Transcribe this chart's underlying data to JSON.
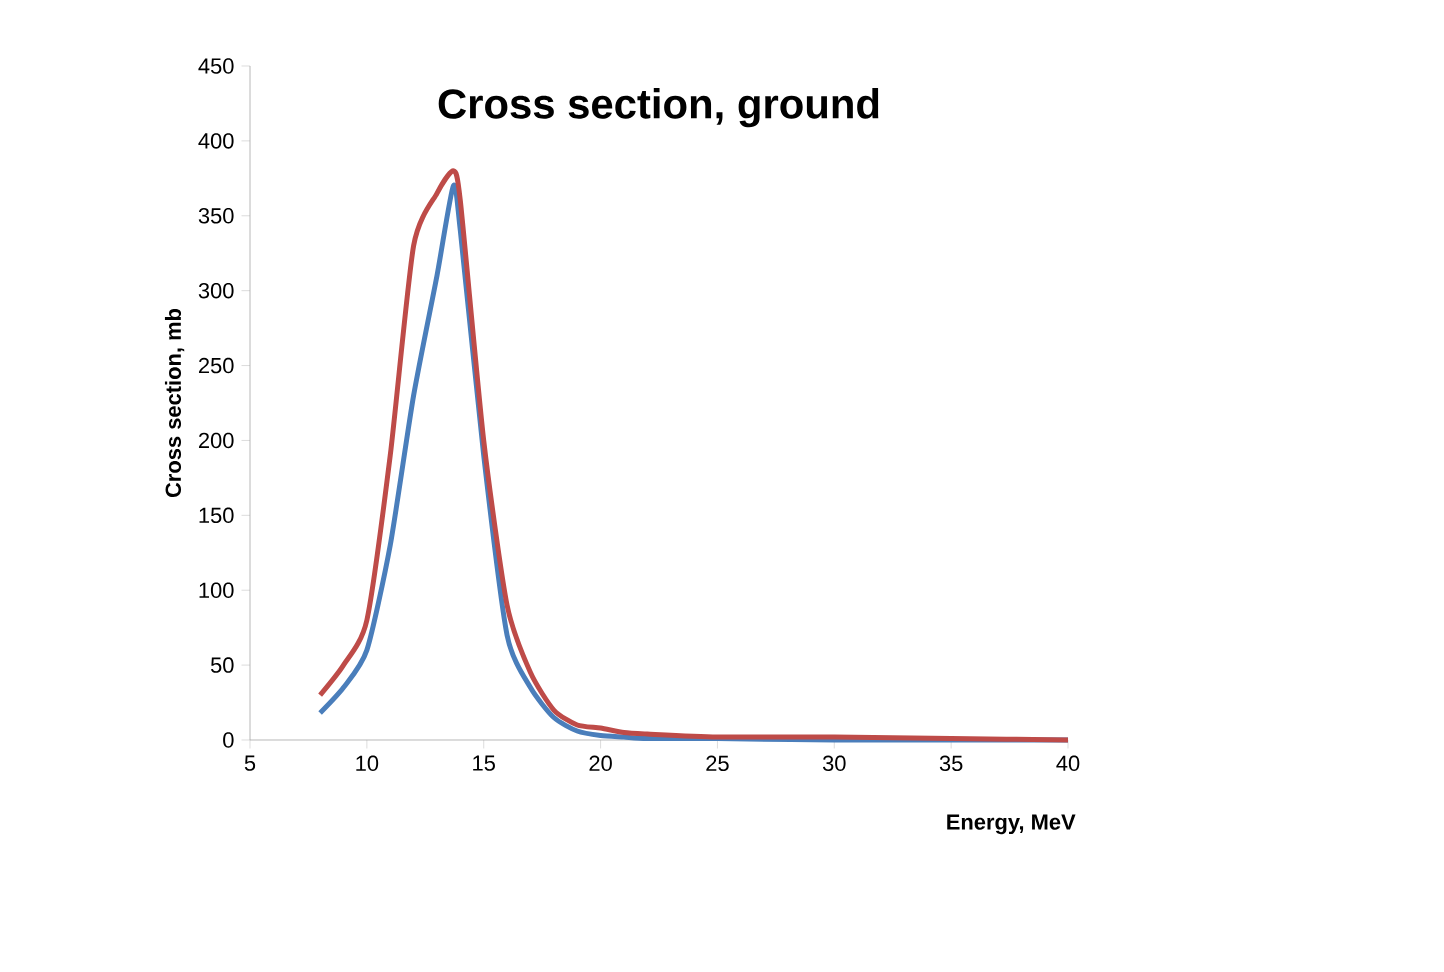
{
  "chart_data": {
    "type": "line",
    "title": "Cross section, ground",
    "xlabel": "Energy, MeV",
    "ylabel": "Cross section, mb",
    "xlim": [
      5,
      40
    ],
    "xticks": [
      5,
      10,
      15,
      20,
      25,
      30,
      35,
      40
    ],
    "ylim": [
      0,
      450
    ],
    "yticks": [
      0,
      50,
      100,
      150,
      200,
      250,
      300,
      350,
      400,
      450
    ],
    "grid": false,
    "series": [
      {
        "color": "#4a7ebb",
        "x": [
          8,
          9,
          10,
          11,
          12,
          13,
          13.7,
          14,
          15,
          16,
          17,
          18,
          19,
          20,
          21,
          22,
          25,
          30,
          40
        ],
        "values": [
          18,
          35,
          60,
          130,
          230,
          310,
          370,
          340,
          190,
          70,
          35,
          15,
          6,
          3,
          2,
          1,
          1,
          0,
          0
        ]
      },
      {
        "color": "#be4b48",
        "x": [
          8,
          9,
          10,
          11,
          12,
          13,
          13.7,
          14,
          15,
          16,
          17,
          18,
          19,
          20,
          21,
          22,
          25,
          30,
          35,
          40
        ],
        "values": [
          30,
          50,
          80,
          190,
          330,
          365,
          380,
          360,
          200,
          90,
          45,
          20,
          10,
          8,
          5,
          4,
          2,
          2,
          1,
          0
        ]
      }
    ]
  }
}
